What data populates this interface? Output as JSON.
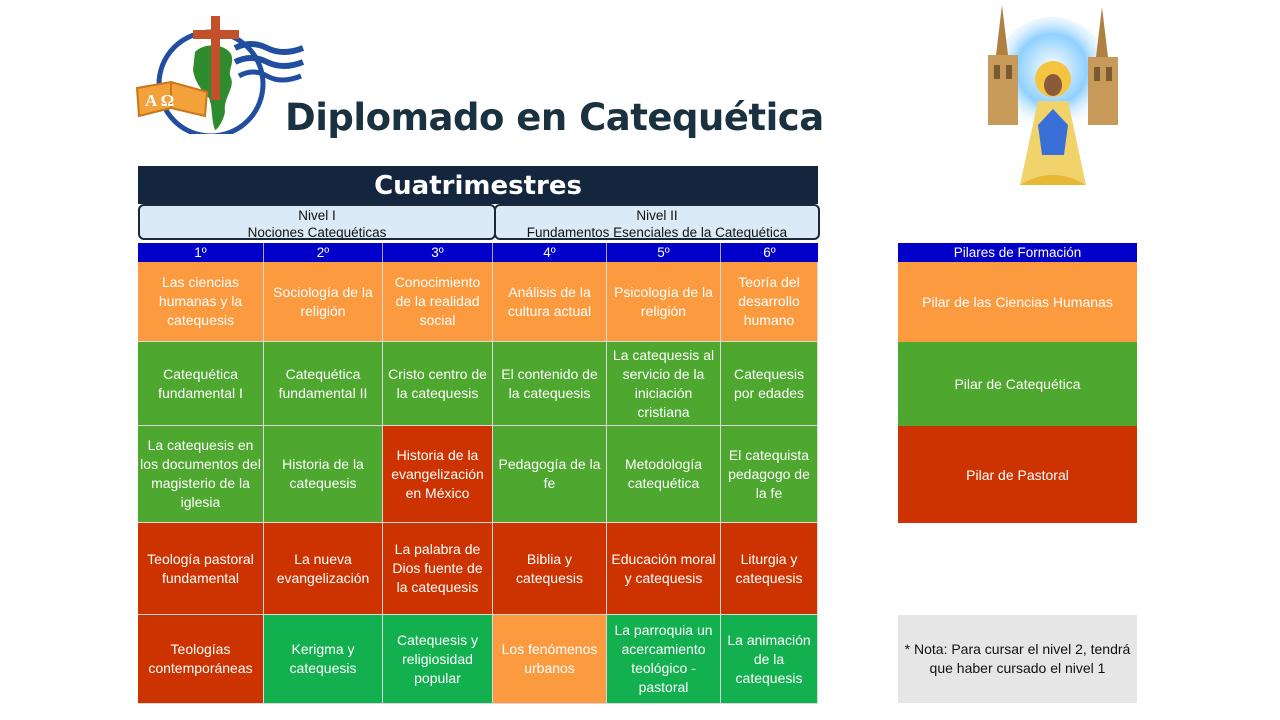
{
  "title": "Diplomado en Catequética",
  "logo": {
    "book_text": "A Ω"
  },
  "header": "Cuatrimestres",
  "levels": [
    {
      "name": "Nivel I",
      "subtitle": "Nociones Catequéticas"
    },
    {
      "name": "Nivel II",
      "subtitle": "Fundamentos Esenciales de la Catequética"
    }
  ],
  "semesters": [
    "1º",
    "2º",
    "3º",
    "4º",
    "5º",
    "6º"
  ],
  "grid": [
    [
      {
        "text": "Las ciencias humanas y la catequesis",
        "color": "orange"
      },
      {
        "text": "Sociología de la religión",
        "color": "orange"
      },
      {
        "text": "Conocimiento de la realidad social",
        "color": "orange"
      },
      {
        "text": "Análisis de la cultura actual",
        "color": "orange"
      },
      {
        "text": "Psicología de la religión",
        "color": "orange"
      },
      {
        "text": "Teoría del desarrollo humano",
        "color": "orange"
      }
    ],
    [
      {
        "text": "Catequética fundamental I",
        "color": "green"
      },
      {
        "text": "Catequética fundamental II",
        "color": "green"
      },
      {
        "text": "Cristo centro de la catequesis",
        "color": "green"
      },
      {
        "text": "El contenido de la catequesis",
        "color": "green"
      },
      {
        "text": "La catequesis al servicio de la iniciación cristiana",
        "color": "green"
      },
      {
        "text": "Catequesis por edades",
        "color": "green"
      }
    ],
    [
      {
        "text": "La catequesis en los documentos del magisterio de la iglesia",
        "color": "green"
      },
      {
        "text": "Historia de la catequesis",
        "color": "green"
      },
      {
        "text": "Historia de la evangelización en México",
        "color": "red"
      },
      {
        "text": "Pedagogía de la fe",
        "color": "green"
      },
      {
        "text": "Metodología catequética",
        "color": "green"
      },
      {
        "text": "El catequista pedagogo de la fe",
        "color": "green"
      }
    ],
    [
      {
        "text": "Teología pastoral fundamental",
        "color": "red"
      },
      {
        "text": "La nueva evangelización",
        "color": "red"
      },
      {
        "text": "La palabra de Dios fuente de la catequesis",
        "color": "red"
      },
      {
        "text": "Biblia y catequesis",
        "color": "red"
      },
      {
        "text": "Educación moral y catequesis",
        "color": "red"
      },
      {
        "text": "Liturgia y catequesis",
        "color": "red"
      }
    ],
    [
      {
        "text": "Teologías contemporáneas",
        "color": "red"
      },
      {
        "text": "Kerigma y catequesis",
        "color": "brightgreen"
      },
      {
        "text": "Catequesis y religiosidad popular",
        "color": "brightgreen"
      },
      {
        "text": "Los fenómenos urbanos",
        "color": "orange"
      },
      {
        "text": "La parroquia un acercamiento teológico - pastoral",
        "color": "brightgreen"
      },
      {
        "text": "La animación de la catequesis",
        "color": "brightgreen"
      }
    ]
  ],
  "pillars": {
    "title": "Pilares de Formación",
    "items": [
      {
        "text": "Pilar de las Ciencias Humanas",
        "color": "orange"
      },
      {
        "text": "Pilar de Catequética",
        "color": "green"
      },
      {
        "text": "Pilar de Pastoral",
        "color": "red"
      }
    ]
  },
  "note": "* Nota: Para cursar el nivel 2, tendrá que haber cursado el nivel 1",
  "colors": {
    "header": "#14263e",
    "semester": "#0000c8",
    "orange": "#fb9a3e",
    "green": "#4ea72e",
    "red": "#cc3300",
    "brightgreen": "#13b04f"
  }
}
